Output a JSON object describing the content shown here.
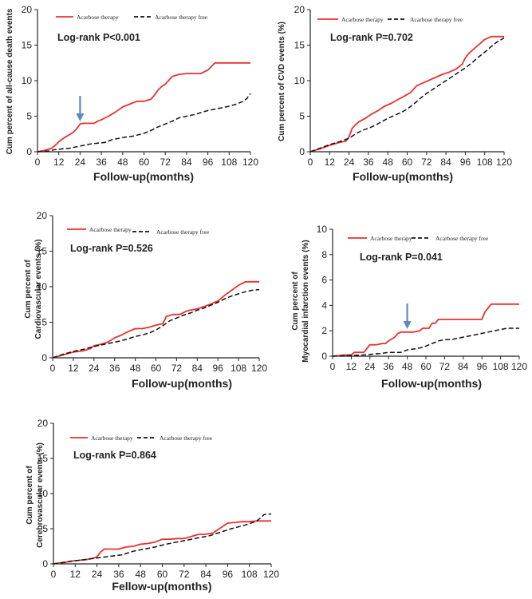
{
  "colors": {
    "treated": "#e8312f",
    "untreated": "#111111",
    "arrow": "#5b87c5",
    "axis": "#222222"
  },
  "chart_data": [
    {
      "id": "all-cause-death",
      "type": "line",
      "xlabel": "Follow-up(months)",
      "ylabel": [
        "Cum percent of all-cause death events"
      ],
      "xlim": [
        0,
        120
      ],
      "ylim": [
        0,
        20
      ],
      "xticks": [
        0,
        12,
        24,
        36,
        48,
        60,
        72,
        84,
        96,
        108,
        120
      ],
      "yticks": [
        0,
        5,
        10,
        15,
        20
      ],
      "stat_text": "Log-rank  P<0.001",
      "legend": [
        "Acarbose therapy",
        "Acarbose therapy free"
      ],
      "arrow_x": 24,
      "series": [
        {
          "name": "Acarbose therapy",
          "x": [
            0,
            4,
            8,
            10,
            12,
            14,
            16,
            18,
            20,
            22,
            24,
            26,
            28,
            30,
            32,
            34,
            36,
            40,
            44,
            48,
            52,
            56,
            60,
            64,
            66,
            68,
            70,
            72,
            76,
            80,
            84,
            88,
            92,
            96,
            100,
            104,
            108,
            112,
            120
          ],
          "y": [
            0,
            0.2,
            0.5,
            0.9,
            1.4,
            1.8,
            2.1,
            2.4,
            2.7,
            3.2,
            3.9,
            4.0,
            4.0,
            4.0,
            4.0,
            4.3,
            4.5,
            5.0,
            5.6,
            6.3,
            6.7,
            7.1,
            7.1,
            7.4,
            8.0,
            8.7,
            9.2,
            9.5,
            10.6,
            10.9,
            11.0,
            11.0,
            11.0,
            11.5,
            12.5,
            12.5,
            12.5,
            12.5,
            12.5
          ]
        },
        {
          "name": "Acarbose therapy free",
          "x": [
            0,
            6,
            10,
            14,
            18,
            22,
            26,
            30,
            34,
            38,
            42,
            48,
            54,
            60,
            64,
            68,
            72,
            76,
            80,
            84,
            88,
            92,
            96,
            100,
            104,
            108,
            112,
            116,
            118,
            120
          ],
          "y": [
            0,
            0.1,
            0.3,
            0.4,
            0.5,
            0.7,
            0.9,
            1.1,
            1.2,
            1.3,
            1.7,
            2.0,
            2.2,
            2.6,
            3.0,
            3.5,
            3.9,
            4.3,
            4.8,
            5.0,
            5.2,
            5.5,
            5.8,
            6.0,
            6.2,
            6.4,
            6.7,
            7.1,
            7.5,
            8.2
          ]
        }
      ]
    },
    {
      "id": "cvd",
      "type": "line",
      "xlabel": "Follow-up(months)",
      "ylabel": [
        "Cum percent of CVD events (%)"
      ],
      "xlim": [
        0,
        120
      ],
      "ylim": [
        0,
        20
      ],
      "xticks": [
        0,
        12,
        24,
        36,
        48,
        60,
        72,
        84,
        96,
        108,
        120
      ],
      "yticks": [
        0,
        5,
        10,
        15,
        20
      ],
      "stat_text": "Log-rank  P=0.702",
      "legend": [
        "Acarbose therapy",
        "Acarbose therapy free"
      ],
      "series": [
        {
          "name": "Acarbose therapy",
          "x": [
            0,
            6,
            12,
            18,
            22,
            24,
            26,
            28,
            30,
            34,
            38,
            42,
            46,
            50,
            54,
            58,
            62,
            64,
            66,
            70,
            74,
            78,
            82,
            86,
            90,
            94,
            96,
            98,
            100,
            104,
            108,
            112,
            116,
            120
          ],
          "y": [
            0,
            0.4,
            0.9,
            1.3,
            1.5,
            2.1,
            3.3,
            3.8,
            4.2,
            4.7,
            5.3,
            5.8,
            6.4,
            6.8,
            7.3,
            7.8,
            8.3,
            8.8,
            9.3,
            9.7,
            10.1,
            10.5,
            10.9,
            11.2,
            11.6,
            12.3,
            13.2,
            13.8,
            14.2,
            15.0,
            15.8,
            16.2,
            16.2,
            16.2
          ]
        },
        {
          "name": "Acarbose therapy free",
          "x": [
            0,
            6,
            12,
            18,
            24,
            28,
            32,
            36,
            40,
            44,
            48,
            52,
            56,
            60,
            64,
            68,
            72,
            76,
            80,
            84,
            88,
            92,
            96,
            100,
            104,
            108,
            112,
            116,
            120
          ],
          "y": [
            0,
            0.5,
            1.0,
            1.4,
            1.9,
            2.5,
            3.0,
            3.3,
            3.7,
            4.2,
            4.7,
            5.1,
            5.5,
            6.0,
            6.7,
            7.5,
            8.2,
            8.8,
            9.4,
            10.0,
            10.6,
            11.2,
            11.8,
            12.5,
            13.3,
            14.0,
            14.8,
            15.5,
            16.0
          ]
        }
      ]
    },
    {
      "id": "cardiovascular",
      "type": "line",
      "xlabel": "Follow-up(months)",
      "ylabel": [
        "Cum percent of",
        "Cardiovascular events (%)"
      ],
      "xlim": [
        0,
        120
      ],
      "ylim": [
        0,
        20
      ],
      "xticks": [
        0,
        12,
        24,
        36,
        48,
        60,
        72,
        84,
        96,
        108,
        120
      ],
      "yticks": [
        0,
        5,
        10,
        15,
        20
      ],
      "stat_text": "Log-rank   P=0.526",
      "legend": [
        "Acarbose therapy",
        "Acarbose therapy free"
      ],
      "series": [
        {
          "name": "Acarbose therapy",
          "x": [
            0,
            6,
            12,
            18,
            22,
            24,
            28,
            32,
            36,
            40,
            44,
            48,
            52,
            56,
            60,
            64,
            66,
            70,
            74,
            78,
            84,
            88,
            92,
            96,
            100,
            104,
            108,
            112,
            116,
            120
          ],
          "y": [
            0,
            0.4,
            0.8,
            1.0,
            1.3,
            1.7,
            1.9,
            2.2,
            2.8,
            3.2,
            3.7,
            4.1,
            4.1,
            4.3,
            4.6,
            4.8,
            5.8,
            6.1,
            6.1,
            6.6,
            6.9,
            7.2,
            7.6,
            8.0,
            8.8,
            9.5,
            10.2,
            10.7,
            10.7,
            10.7
          ]
        },
        {
          "name": "Acarbose therapy free",
          "x": [
            0,
            6,
            12,
            18,
            24,
            30,
            36,
            40,
            44,
            48,
            52,
            56,
            60,
            64,
            68,
            72,
            76,
            80,
            84,
            88,
            92,
            96,
            100,
            104,
            108,
            112,
            116,
            120
          ],
          "y": [
            0,
            0.5,
            0.9,
            1.2,
            1.6,
            1.9,
            2.2,
            2.4,
            2.7,
            3.0,
            3.2,
            3.5,
            3.9,
            4.5,
            5.2,
            5.6,
            6.0,
            6.3,
            6.7,
            7.0,
            7.4,
            7.8,
            8.3,
            8.7,
            9.0,
            9.3,
            9.5,
            9.6
          ]
        }
      ]
    },
    {
      "id": "myocardial-infarction",
      "type": "line",
      "xlabel": "Follow-up(months)",
      "ylabel": [
        "Cum percent of",
        "Myocardial infarction events (%)"
      ],
      "xlim": [
        0,
        120
      ],
      "ylim": [
        0,
        10
      ],
      "xticks": [
        0,
        12,
        24,
        36,
        48,
        60,
        72,
        84,
        96,
        108,
        120
      ],
      "yticks": [
        0,
        2,
        4,
        6,
        8,
        10
      ],
      "stat_text": "Log-rank  P=0.041",
      "legend": [
        "Acarbose therapy",
        "Acarbose therapy free"
      ],
      "arrow_x": 48,
      "series": [
        {
          "name": "Acarbose therapy",
          "x": [
            0,
            8,
            12,
            14,
            20,
            22,
            24,
            28,
            32,
            34,
            36,
            40,
            42,
            44,
            48,
            52,
            56,
            58,
            62,
            64,
            66,
            68,
            72,
            80,
            88,
            96,
            98,
            100,
            102,
            108,
            120
          ],
          "y": [
            0,
            0.1,
            0.1,
            0.3,
            0.3,
            0.6,
            0.9,
            0.9,
            1.0,
            1.0,
            1.2,
            1.5,
            1.8,
            1.9,
            1.9,
            1.9,
            2.0,
            2.2,
            2.2,
            2.6,
            2.6,
            2.9,
            2.9,
            2.9,
            2.9,
            2.9,
            3.5,
            3.8,
            4.1,
            4.1,
            4.1
          ]
        },
        {
          "name": "Acarbose therapy free",
          "x": [
            0,
            10,
            20,
            30,
            36,
            44,
            48,
            54,
            58,
            62,
            66,
            68,
            72,
            76,
            80,
            84,
            88,
            92,
            96,
            100,
            104,
            108,
            112,
            116,
            120
          ],
          "y": [
            0,
            0.05,
            0.1,
            0.2,
            0.3,
            0.3,
            0.5,
            0.6,
            0.7,
            0.9,
            1.1,
            1.2,
            1.3,
            1.3,
            1.4,
            1.5,
            1.6,
            1.7,
            1.8,
            1.9,
            2.0,
            2.1,
            2.2,
            2.2,
            2.2
          ]
        }
      ]
    },
    {
      "id": "cerebrovascular",
      "type": "line",
      "xlabel": "Fellow-up(months)",
      "ylabel": [
        "Cum percent of",
        "Cerebrovascular events (%)"
      ],
      "xlim": [
        0,
        120
      ],
      "ylim": [
        0,
        20
      ],
      "xticks": [
        0,
        12,
        24,
        36,
        48,
        60,
        72,
        84,
        96,
        108,
        120
      ],
      "yticks": [
        0,
        5,
        10,
        15,
        20
      ],
      "stat_text": "Log-rank  P=0.864",
      "legend": [
        "Acarbose therapy",
        "Acarbose therapy free"
      ],
      "series": [
        {
          "name": "Acarbose therapy",
          "x": [
            0,
            6,
            10,
            14,
            18,
            22,
            24,
            26,
            28,
            32,
            36,
            40,
            44,
            48,
            52,
            56,
            60,
            64,
            68,
            72,
            76,
            80,
            84,
            88,
            92,
            96,
            100,
            104,
            108,
            112,
            116,
            120
          ],
          "y": [
            0,
            0.2,
            0.4,
            0.5,
            0.6,
            0.8,
            1.0,
            1.7,
            2.1,
            2.1,
            2.1,
            2.4,
            2.5,
            2.8,
            2.9,
            3.1,
            3.5,
            3.5,
            3.6,
            3.6,
            3.9,
            4.2,
            4.2,
            4.4,
            5.1,
            5.8,
            5.9,
            6.0,
            6.0,
            6.1,
            6.1,
            6.1
          ]
        },
        {
          "name": "Acarbose therapy free",
          "x": [
            0,
            8,
            14,
            20,
            26,
            32,
            38,
            44,
            50,
            56,
            62,
            68,
            74,
            80,
            86,
            92,
            98,
            104,
            108,
            112,
            114,
            116,
            120
          ],
          "y": [
            0,
            0.3,
            0.5,
            0.7,
            0.9,
            1.1,
            1.3,
            1.8,
            2.1,
            2.4,
            2.8,
            3.1,
            3.4,
            3.7,
            4.0,
            4.5,
            5.0,
            5.4,
            5.7,
            6.1,
            6.5,
            7.0,
            7.1
          ]
        }
      ]
    }
  ]
}
